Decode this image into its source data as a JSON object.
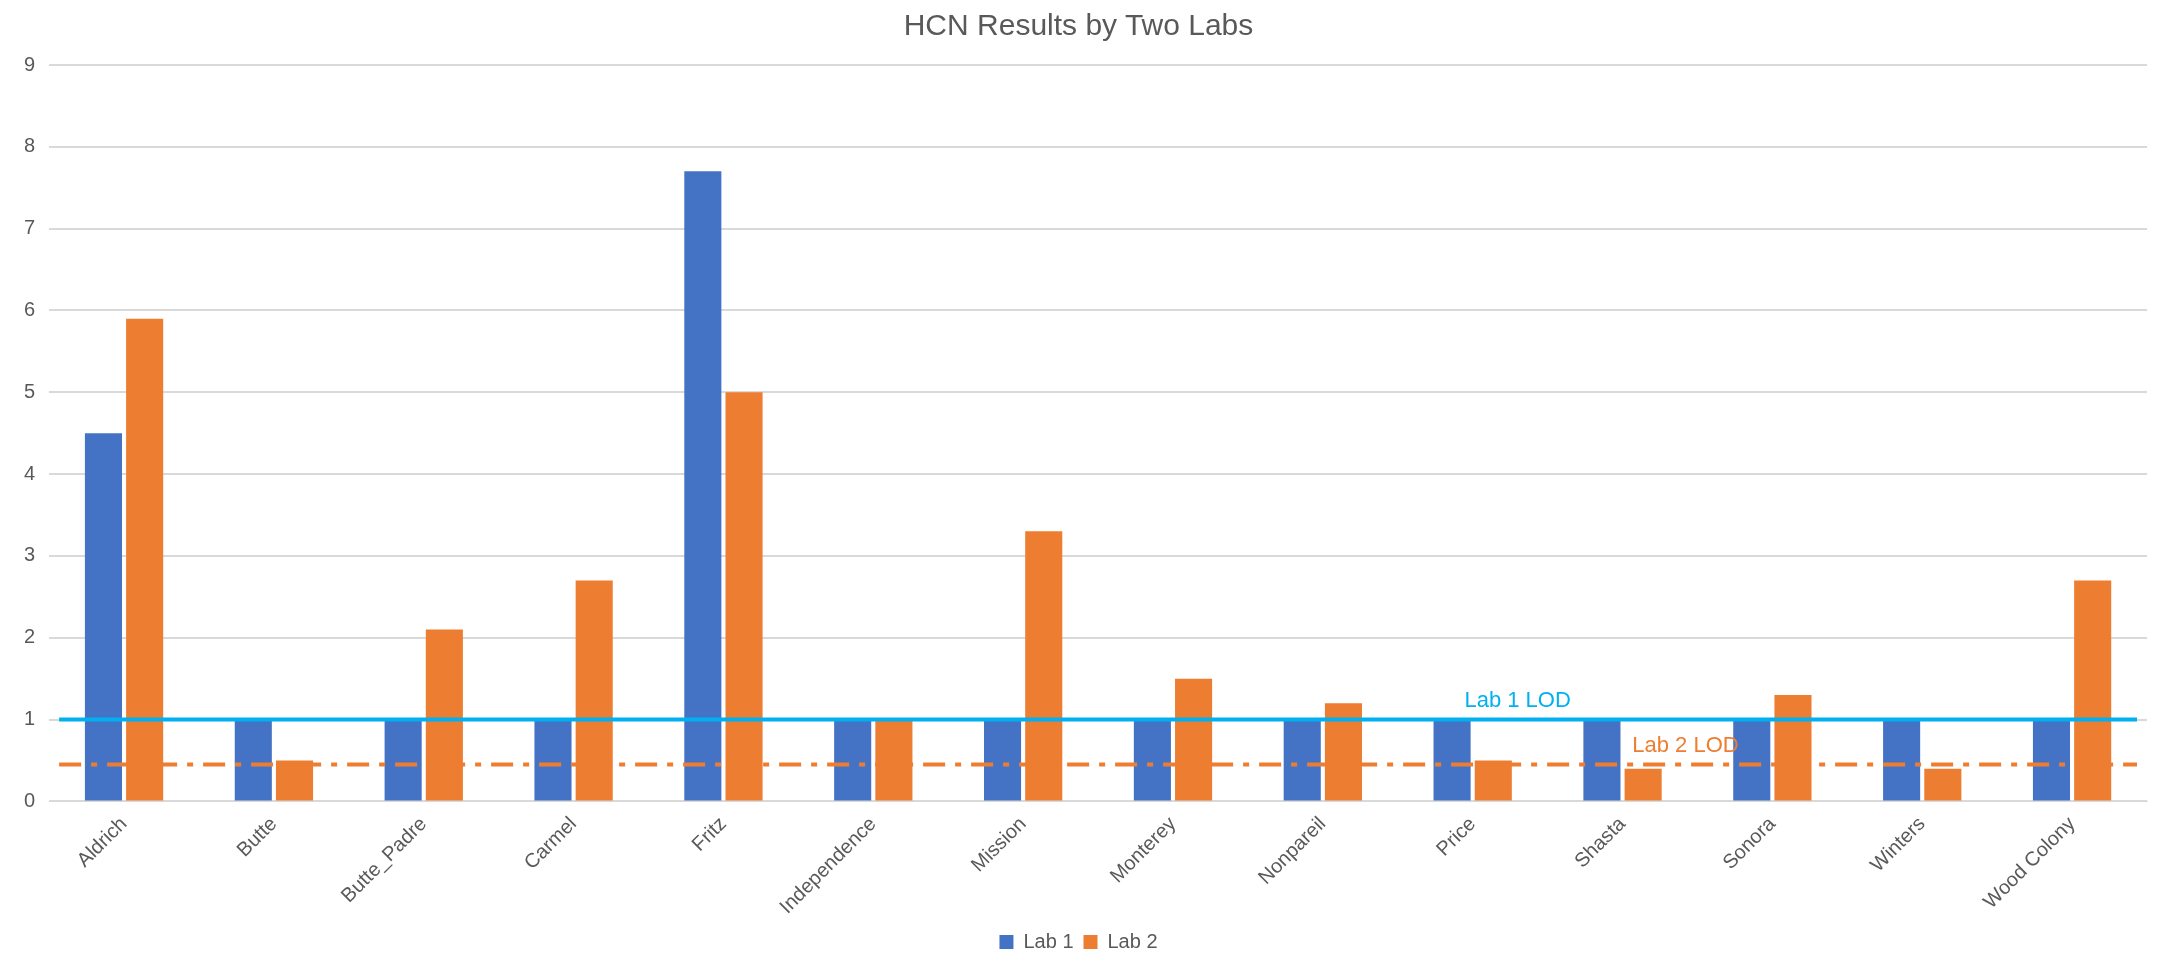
{
  "chart_data": {
    "type": "bar",
    "title": "HCN Results by Two Labs",
    "categories": [
      "Aldrich",
      "Butte",
      "Butte_Padre",
      "Carmel",
      "Fritz",
      "Independence",
      "Mission",
      "Monterey",
      "Nonpareil",
      "Price",
      "Shasta",
      "Sonora",
      "Winters",
      "Wood Colony"
    ],
    "series": [
      {
        "name": "Lab 1",
        "color": "#4472c4",
        "values": [
          4.5,
          1,
          1,
          1,
          7.7,
          1,
          1,
          1,
          1,
          1,
          1,
          1,
          1,
          1
        ]
      },
      {
        "name": "Lab 2",
        "color": "#ed7d31",
        "values": [
          5.9,
          0.5,
          2.1,
          2.7,
          5,
          1,
          3.3,
          1.5,
          1.2,
          0.5,
          0.4,
          1.3,
          0.4,
          2.7
        ]
      }
    ],
    "ylim": [
      0,
      9
    ],
    "yticks": [
      0,
      1,
      2,
      3,
      4,
      5,
      6,
      7,
      8,
      9
    ],
    "grid": "y",
    "legend": "bottom",
    "ref_lines": [
      {
        "axis": "y",
        "value": 1,
        "label": "Lab 1 LOD",
        "color": "#00b0f0",
        "line_style": "solid"
      },
      {
        "axis": "y",
        "value": 0.45,
        "label": "Lab 2 LOD",
        "color": "#ed7d31",
        "line_style": "dashed"
      }
    ]
  }
}
